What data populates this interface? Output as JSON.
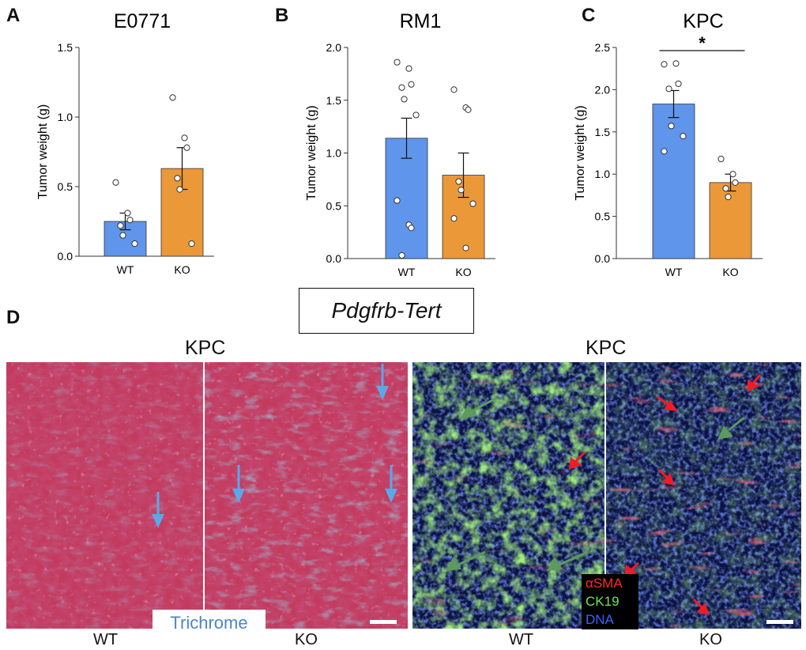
{
  "panels": {
    "a": {
      "letter": "A"
    },
    "b": {
      "letter": "B"
    },
    "c": {
      "letter": "C"
    },
    "d": {
      "letter": "D"
    }
  },
  "colors": {
    "wt_bar": "#5f95ea",
    "ko_bar": "#eb9839",
    "trichrome_text": "#4d86c6"
  },
  "chart_data": [
    {
      "type": "bar",
      "title": "E0771",
      "ylabel": "Tumor weight (g)",
      "categories": [
        "WT",
        "KO"
      ],
      "values": [
        0.25,
        0.63
      ],
      "errors": [
        0.06,
        0.15
      ],
      "points": [
        [
          0.53,
          0.31,
          0.26,
          0.22,
          0.15,
          0.09
        ],
        [
          1.14,
          0.85,
          0.78,
          0.56,
          0.48,
          0.09
        ]
      ],
      "ylim": [
        0,
        1.5
      ],
      "yticks": [
        "0.0",
        "0.5",
        "1.0",
        "1.5"
      ]
    },
    {
      "type": "bar",
      "title": "RM1",
      "ylabel": "Tumor weight (g)",
      "categories": [
        "WT",
        "KO"
      ],
      "values": [
        1.14,
        0.79
      ],
      "errors": [
        0.19,
        0.21
      ],
      "points": [
        [
          1.86,
          1.8,
          1.65,
          1.62,
          1.51,
          1.36,
          0.55,
          0.32,
          0.29,
          0.03
        ],
        [
          1.6,
          1.43,
          1.41,
          0.73,
          0.65,
          0.52,
          0.38,
          0.1
        ]
      ],
      "ylim": [
        0,
        2.0
      ],
      "yticks": [
        "0.0",
        "0.5",
        "1.0",
        "1.5",
        "2.0"
      ]
    },
    {
      "type": "bar",
      "title": "KPC",
      "ylabel": "Tumor weight (g)",
      "categories": [
        "WT",
        "KO"
      ],
      "values": [
        1.83,
        0.9
      ],
      "errors": [
        0.16,
        0.1
      ],
      "points": [
        [
          2.3,
          2.31,
          2.07,
          2.01,
          1.57,
          1.45,
          1.27
        ],
        [
          1.18,
          1.0,
          0.9,
          0.83,
          0.73
        ]
      ],
      "ylim": [
        0,
        2.5
      ],
      "yticks": [
        "0.0",
        "0.5",
        "1.0",
        "1.5",
        "2.0",
        "2.5"
      ],
      "significance": "*"
    }
  ],
  "genotype": "Pdgfrb-Tert",
  "micrographs": {
    "left": {
      "title": "KPC",
      "wt_label": "WT",
      "ko_label": "KO",
      "stain_label": "Trichrome"
    },
    "right": {
      "title": "KPC",
      "wt_label": "WT",
      "ko_label": "KO",
      "legend": {
        "sma": "αSMA",
        "ck19": "CK19",
        "dna": "DNA"
      },
      "legend_colors": {
        "sma": "#ff2a2a",
        "ck19": "#6fe35a",
        "dna": "#3b63ff"
      }
    }
  }
}
